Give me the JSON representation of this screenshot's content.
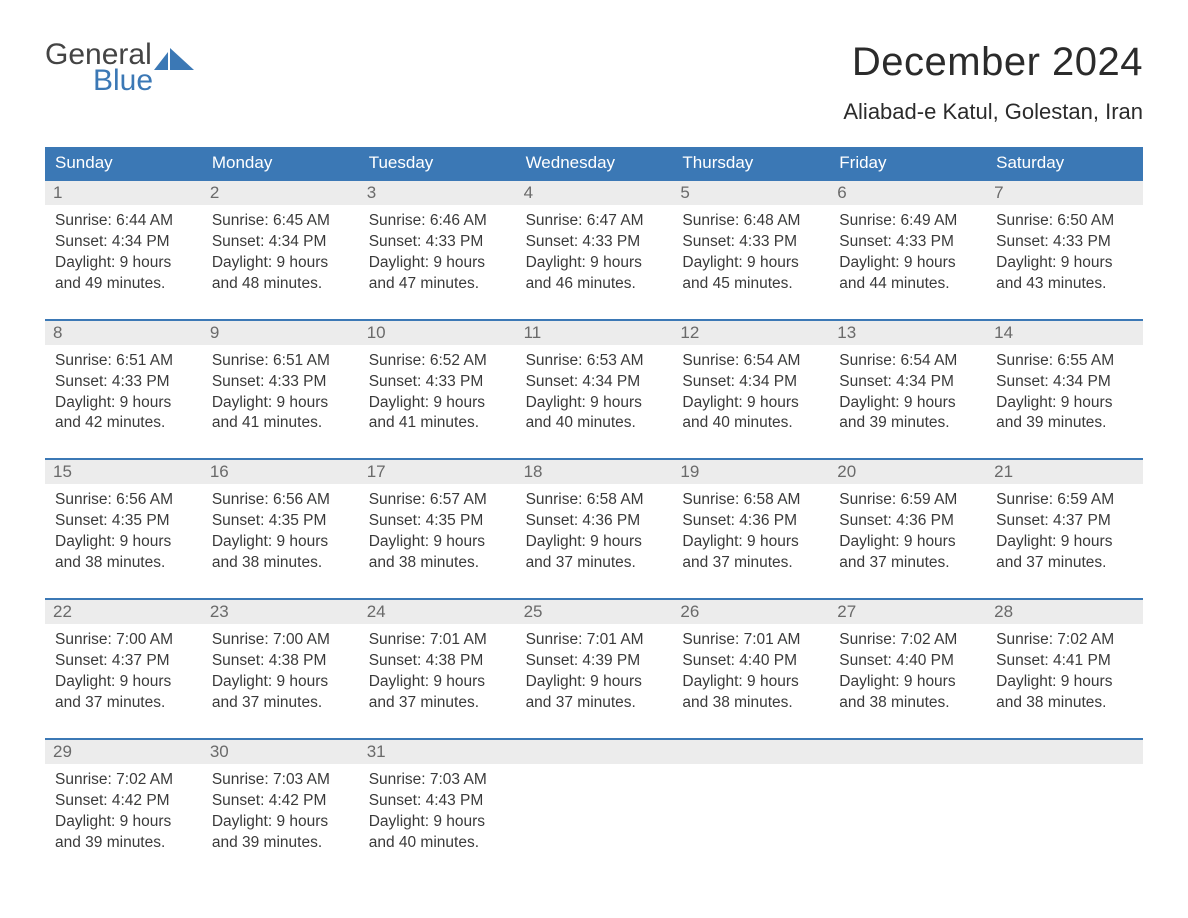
{
  "logo": {
    "text_general": "General",
    "text_blue": "Blue",
    "flag_color": "#3b78b5"
  },
  "title": "December 2024",
  "location": "Aliabad-e Katul, Golestan, Iran",
  "colors": {
    "header_bg": "#3b78b5",
    "header_text": "#ffffff",
    "row_border": "#3b78b5",
    "daynum_bg": "#ececec",
    "daynum_text": "#6a6a6a",
    "body_text": "#3a3a3a",
    "background": "#ffffff"
  },
  "typography": {
    "title_fontsize": 40,
    "location_fontsize": 22,
    "weekday_fontsize": 17,
    "daynum_fontsize": 17,
    "body_fontsize": 15.5
  },
  "weekdays": [
    "Sunday",
    "Monday",
    "Tuesday",
    "Wednesday",
    "Thursday",
    "Friday",
    "Saturday"
  ],
  "weeks": [
    [
      {
        "n": "1",
        "sunrise": "6:44 AM",
        "sunset": "4:34 PM",
        "dl1": "Daylight: 9 hours",
        "dl2": "and 49 minutes."
      },
      {
        "n": "2",
        "sunrise": "6:45 AM",
        "sunset": "4:34 PM",
        "dl1": "Daylight: 9 hours",
        "dl2": "and 48 minutes."
      },
      {
        "n": "3",
        "sunrise": "6:46 AM",
        "sunset": "4:33 PM",
        "dl1": "Daylight: 9 hours",
        "dl2": "and 47 minutes."
      },
      {
        "n": "4",
        "sunrise": "6:47 AM",
        "sunset": "4:33 PM",
        "dl1": "Daylight: 9 hours",
        "dl2": "and 46 minutes."
      },
      {
        "n": "5",
        "sunrise": "6:48 AM",
        "sunset": "4:33 PM",
        "dl1": "Daylight: 9 hours",
        "dl2": "and 45 minutes."
      },
      {
        "n": "6",
        "sunrise": "6:49 AM",
        "sunset": "4:33 PM",
        "dl1": "Daylight: 9 hours",
        "dl2": "and 44 minutes."
      },
      {
        "n": "7",
        "sunrise": "6:50 AM",
        "sunset": "4:33 PM",
        "dl1": "Daylight: 9 hours",
        "dl2": "and 43 minutes."
      }
    ],
    [
      {
        "n": "8",
        "sunrise": "6:51 AM",
        "sunset": "4:33 PM",
        "dl1": "Daylight: 9 hours",
        "dl2": "and 42 minutes."
      },
      {
        "n": "9",
        "sunrise": "6:51 AM",
        "sunset": "4:33 PM",
        "dl1": "Daylight: 9 hours",
        "dl2": "and 41 minutes."
      },
      {
        "n": "10",
        "sunrise": "6:52 AM",
        "sunset": "4:33 PM",
        "dl1": "Daylight: 9 hours",
        "dl2": "and 41 minutes."
      },
      {
        "n": "11",
        "sunrise": "6:53 AM",
        "sunset": "4:34 PM",
        "dl1": "Daylight: 9 hours",
        "dl2": "and 40 minutes."
      },
      {
        "n": "12",
        "sunrise": "6:54 AM",
        "sunset": "4:34 PM",
        "dl1": "Daylight: 9 hours",
        "dl2": "and 40 minutes."
      },
      {
        "n": "13",
        "sunrise": "6:54 AM",
        "sunset": "4:34 PM",
        "dl1": "Daylight: 9 hours",
        "dl2": "and 39 minutes."
      },
      {
        "n": "14",
        "sunrise": "6:55 AM",
        "sunset": "4:34 PM",
        "dl1": "Daylight: 9 hours",
        "dl2": "and 39 minutes."
      }
    ],
    [
      {
        "n": "15",
        "sunrise": "6:56 AM",
        "sunset": "4:35 PM",
        "dl1": "Daylight: 9 hours",
        "dl2": "and 38 minutes."
      },
      {
        "n": "16",
        "sunrise": "6:56 AM",
        "sunset": "4:35 PM",
        "dl1": "Daylight: 9 hours",
        "dl2": "and 38 minutes."
      },
      {
        "n": "17",
        "sunrise": "6:57 AM",
        "sunset": "4:35 PM",
        "dl1": "Daylight: 9 hours",
        "dl2": "and 38 minutes."
      },
      {
        "n": "18",
        "sunrise": "6:58 AM",
        "sunset": "4:36 PM",
        "dl1": "Daylight: 9 hours",
        "dl2": "and 37 minutes."
      },
      {
        "n": "19",
        "sunrise": "6:58 AM",
        "sunset": "4:36 PM",
        "dl1": "Daylight: 9 hours",
        "dl2": "and 37 minutes."
      },
      {
        "n": "20",
        "sunrise": "6:59 AM",
        "sunset": "4:36 PM",
        "dl1": "Daylight: 9 hours",
        "dl2": "and 37 minutes."
      },
      {
        "n": "21",
        "sunrise": "6:59 AM",
        "sunset": "4:37 PM",
        "dl1": "Daylight: 9 hours",
        "dl2": "and 37 minutes."
      }
    ],
    [
      {
        "n": "22",
        "sunrise": "7:00 AM",
        "sunset": "4:37 PM",
        "dl1": "Daylight: 9 hours",
        "dl2": "and 37 minutes."
      },
      {
        "n": "23",
        "sunrise": "7:00 AM",
        "sunset": "4:38 PM",
        "dl1": "Daylight: 9 hours",
        "dl2": "and 37 minutes."
      },
      {
        "n": "24",
        "sunrise": "7:01 AM",
        "sunset": "4:38 PM",
        "dl1": "Daylight: 9 hours",
        "dl2": "and 37 minutes."
      },
      {
        "n": "25",
        "sunrise": "7:01 AM",
        "sunset": "4:39 PM",
        "dl1": "Daylight: 9 hours",
        "dl2": "and 37 minutes."
      },
      {
        "n": "26",
        "sunrise": "7:01 AM",
        "sunset": "4:40 PM",
        "dl1": "Daylight: 9 hours",
        "dl2": "and 38 minutes."
      },
      {
        "n": "27",
        "sunrise": "7:02 AM",
        "sunset": "4:40 PM",
        "dl1": "Daylight: 9 hours",
        "dl2": "and 38 minutes."
      },
      {
        "n": "28",
        "sunrise": "7:02 AM",
        "sunset": "4:41 PM",
        "dl1": "Daylight: 9 hours",
        "dl2": "and 38 minutes."
      }
    ],
    [
      {
        "n": "29",
        "sunrise": "7:02 AM",
        "sunset": "4:42 PM",
        "dl1": "Daylight: 9 hours",
        "dl2": "and 39 minutes."
      },
      {
        "n": "30",
        "sunrise": "7:03 AM",
        "sunset": "4:42 PM",
        "dl1": "Daylight: 9 hours",
        "dl2": "and 39 minutes."
      },
      {
        "n": "31",
        "sunrise": "7:03 AM",
        "sunset": "4:43 PM",
        "dl1": "Daylight: 9 hours",
        "dl2": "and 40 minutes."
      },
      null,
      null,
      null,
      null
    ]
  ],
  "labels": {
    "sunrise_prefix": "Sunrise: ",
    "sunset_prefix": "Sunset: "
  }
}
